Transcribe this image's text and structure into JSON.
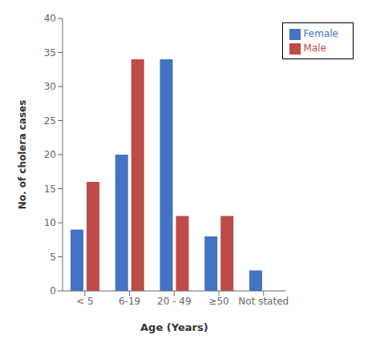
{
  "chart_data": {
    "type": "bar",
    "xlabel": "Age (Years)",
    "ylabel": "No. of cholera cases",
    "categories": [
      "< 5",
      "6-19",
      "20 - 49",
      "≥50",
      "Not stated"
    ],
    "series": [
      {
        "name": "Female",
        "color": "#4472C4",
        "values": [
          9,
          20,
          34,
          8,
          3
        ]
      },
      {
        "name": "Male",
        "color": "#BE4B48",
        "values": [
          16,
          34,
          11,
          11,
          0
        ]
      }
    ],
    "ylim": [
      0,
      40
    ],
    "yticks": [
      0,
      5,
      10,
      15,
      20,
      25,
      30,
      35,
      40
    ],
    "legend": "upper right",
    "grid": false
  }
}
